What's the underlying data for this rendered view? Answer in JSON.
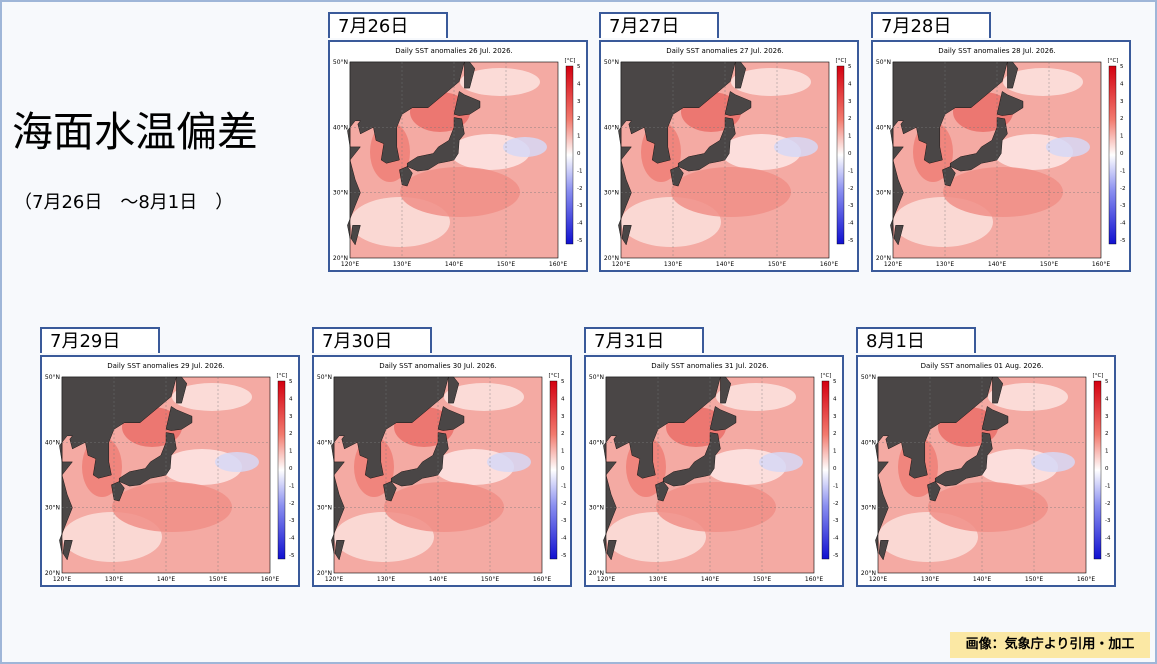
{
  "title": "海面水温偏差",
  "subtitle": "（7月26日　～8月1日　）",
  "panels": [
    {
      "date": "7月26日",
      "map_title": "Daily SST anomalies 26 Jul. 2026."
    },
    {
      "date": "7月27日",
      "map_title": "Daily SST anomalies 27 Jul. 2026."
    },
    {
      "date": "7月28日",
      "map_title": "Daily SST anomalies 28 Jul. 2026."
    },
    {
      "date": "7月29日",
      "map_title": "Daily SST anomalies 29 Jul. 2026."
    },
    {
      "date": "7月30日",
      "map_title": "Daily SST anomalies 30 Jul. 2026."
    },
    {
      "date": "7月31日",
      "map_title": "Daily SST anomalies 31 Jul. 2026."
    },
    {
      "date": "8月1日",
      "map_title": "Daily SST anomalies 01 Aug. 2026."
    }
  ],
  "lat_labels": [
    "50°N",
    "40°N",
    "30°N",
    "20°N"
  ],
  "lon_labels": [
    "120°E",
    "130°E",
    "140°E",
    "150°E",
    "160°E"
  ],
  "colorbar": {
    "unit": "[°C]",
    "ticks": [
      5,
      4,
      3,
      2,
      1,
      0,
      -1,
      -2,
      -3,
      -4,
      -5
    ]
  },
  "credit": "画像：気象庁より引用・加工"
}
